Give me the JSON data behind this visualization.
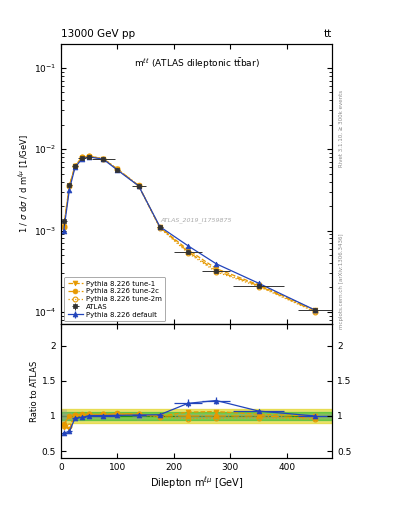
{
  "title_left": "13000 GeV pp",
  "title_right": "tt",
  "annotation": "m^{ll} (ATLAS dileptonic ttbar)",
  "atlas_id": "ATLAS_2019_I1759875",
  "right_label_top": "Rivet 3.1.10, ≥ 300k events",
  "right_label_bot": "mcplots.cern.ch [arXiv:1306.3436]",
  "atlas_x": [
    5,
    15,
    25,
    37.5,
    50,
    75,
    100,
    137.5,
    175,
    225,
    275,
    350,
    450
  ],
  "atlas_y": [
    0.0013,
    0.0036,
    0.0062,
    0.0078,
    0.008,
    0.0075,
    0.0055,
    0.0035,
    0.0011,
    0.00055,
    0.00032,
    0.00021,
    0.000105
  ],
  "atlas_yerr": [
    0.00012,
    0.0002,
    0.0003,
    0.0003,
    0.0003,
    0.0003,
    0.0002,
    0.0002,
    5e-05,
    2.5e-05,
    1.5e-05,
    1e-05,
    5e-06
  ],
  "atlas_xerr": [
    5,
    5,
    5,
    7.5,
    5,
    20,
    5,
    12.5,
    5,
    25,
    25,
    45,
    30
  ],
  "py_default_x": [
    5,
    15,
    25,
    37.5,
    50,
    75,
    100,
    137.5,
    175,
    225,
    275,
    350,
    450
  ],
  "py_default_y": [
    0.001,
    0.0032,
    0.006,
    0.00765,
    0.00805,
    0.00755,
    0.00555,
    0.00355,
    0.00112,
    0.00065,
    0.00039,
    0.000225,
    0.000105
  ],
  "py_default_yerr": [
    3e-05,
    8e-05,
    0.00012,
    0.00012,
    0.00012,
    0.00012,
    0.0001,
    8e-05,
    2.5e-05,
    1.2e-05,
    8e-06,
    4e-06,
    2.5e-06
  ],
  "py_tune1_x": [
    5,
    15,
    25,
    37.5,
    50,
    75,
    100,
    137.5,
    175,
    225,
    275,
    350,
    450
  ],
  "py_tune1_y": [
    0.0011,
    0.0035,
    0.0062,
    0.0079,
    0.0081,
    0.00765,
    0.00565,
    0.00355,
    0.0011,
    0.00058,
    0.00034,
    0.000215,
    0.000105
  ],
  "py_tune2c_x": [
    5,
    15,
    25,
    37.5,
    50,
    75,
    100,
    137.5,
    175,
    225,
    275,
    350,
    450
  ],
  "py_tune2c_y": [
    0.00115,
    0.0036,
    0.0063,
    0.008,
    0.0082,
    0.0077,
    0.0057,
    0.0036,
    0.0011,
    0.00055,
    0.00032,
    0.00021,
    0.000102
  ],
  "py_tune2m_x": [
    5,
    15,
    25,
    37.5,
    50,
    75,
    100,
    137.5,
    175,
    225,
    275,
    350,
    450
  ],
  "py_tune2m_y": [
    0.00112,
    0.00355,
    0.00625,
    0.00795,
    0.00818,
    0.00768,
    0.00568,
    0.00358,
    0.00108,
    0.00053,
    0.00031,
    0.000205,
    0.0001
  ],
  "ratio_atlas_yerr": [
    0.093,
    0.056,
    0.048,
    0.038,
    0.038,
    0.04,
    0.036,
    0.057,
    0.045,
    0.045,
    0.047,
    0.048,
    0.048
  ],
  "ratio_default_y": [
    0.76,
    0.78,
    0.97,
    0.98,
    1.006,
    1.007,
    1.009,
    1.014,
    1.018,
    1.18,
    1.22,
    1.07,
    1.0
  ],
  "ratio_default_yerr": [
    0.035,
    0.028,
    0.022,
    0.018,
    0.018,
    0.018,
    0.018,
    0.026,
    0.022,
    0.055,
    0.055,
    0.022,
    0.028
  ],
  "ratio_default_xerr": [
    5,
    5,
    5,
    7.5,
    5,
    20,
    5,
    12.5,
    5,
    25,
    25,
    45,
    30
  ],
  "ratio_tune1_y": [
    0.85,
    0.82,
    1.0,
    1.015,
    1.012,
    1.02,
    1.027,
    1.014,
    1.0,
    1.055,
    1.063,
    1.024,
    1.0
  ],
  "ratio_tune2c_y": [
    0.88,
    1.0,
    1.016,
    1.026,
    1.025,
    1.027,
    1.036,
    1.028,
    1.0,
    1.0,
    1.0,
    1.0,
    0.97
  ],
  "ratio_tune2m_y": [
    0.86,
    0.86,
    1.008,
    1.019,
    1.022,
    1.024,
    1.032,
    1.023,
    0.982,
    0.964,
    0.969,
    0.976,
    0.952
  ],
  "color_atlas": "#333333",
  "color_default": "#2244bb",
  "color_orange": "#e69900",
  "color_green_band": "#33bb33",
  "color_yellow_band": "#ddcc00",
  "ylim_main": [
    7e-05,
    0.2
  ],
  "ylim_ratio": [
    0.4,
    2.3
  ],
  "xlim": [
    0,
    480
  ],
  "xticks": [
    0,
    100,
    200,
    300,
    400
  ]
}
